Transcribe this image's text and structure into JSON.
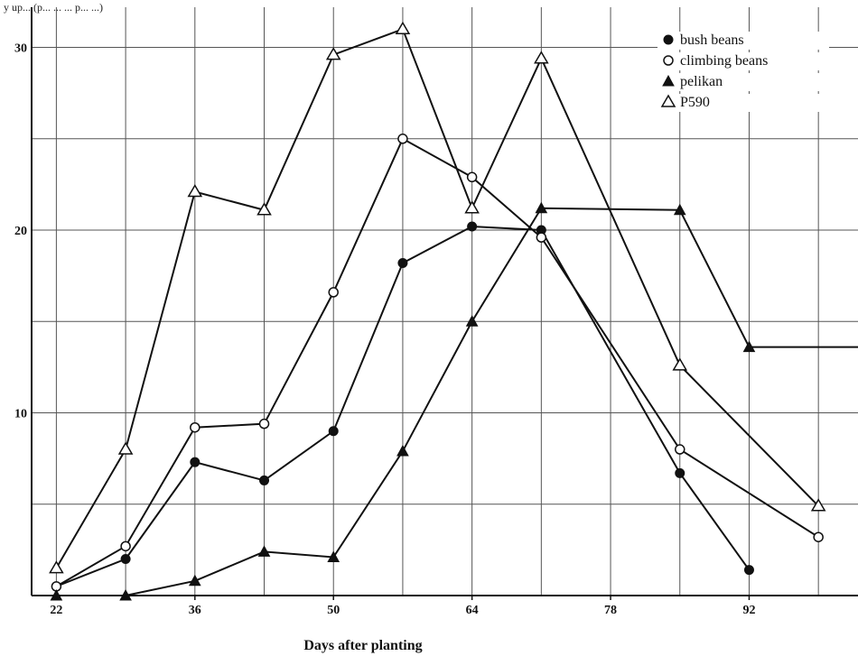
{
  "header_text": "y up... (p... ... ... p... ...)",
  "chart_data": {
    "type": "line",
    "title": "",
    "xlabel": "Days after planting",
    "ylabel": "",
    "x_ticks": [
      22,
      36,
      50,
      64,
      78,
      92
    ],
    "y_ticks": [
      10,
      20,
      30
    ],
    "xlim": [
      19.5,
      103
    ],
    "ylim": [
      0,
      32.2
    ],
    "grid": true,
    "legend_position": "top-right",
    "series": [
      {
        "name": "bush beans",
        "marker": "filled-circle",
        "x": [
          22,
          29,
          36,
          43,
          50,
          57,
          64,
          71,
          85,
          92
        ],
        "y": [
          0.5,
          2,
          7.3,
          6.3,
          9,
          18.2,
          20.2,
          20,
          6.7,
          1.4
        ]
      },
      {
        "name": "climbing beans",
        "marker": "open-circle",
        "x": [
          22,
          29,
          36,
          43,
          50,
          57,
          64,
          71,
          85,
          99
        ],
        "y": [
          0.5,
          2.7,
          9.2,
          9.4,
          16.6,
          25,
          22.9,
          19.6,
          8,
          3.2
        ]
      },
      {
        "name": "pelikan",
        "marker": "filled-triangle",
        "x": [
          22,
          29,
          36,
          43,
          50,
          57,
          64,
          71,
          85,
          92,
          103
        ],
        "y": [
          0,
          0,
          0.8,
          2.4,
          2.1,
          7.9,
          15,
          21.2,
          21.1,
          13.6,
          13.6
        ]
      },
      {
        "name": "P590",
        "marker": "open-triangle",
        "x": [
          22,
          29,
          36,
          43,
          50,
          57,
          64,
          71,
          85,
          99
        ],
        "y": [
          1.5,
          8,
          22.1,
          21.1,
          29.6,
          31,
          21.2,
          29.4,
          12.6,
          4.9
        ]
      }
    ]
  }
}
